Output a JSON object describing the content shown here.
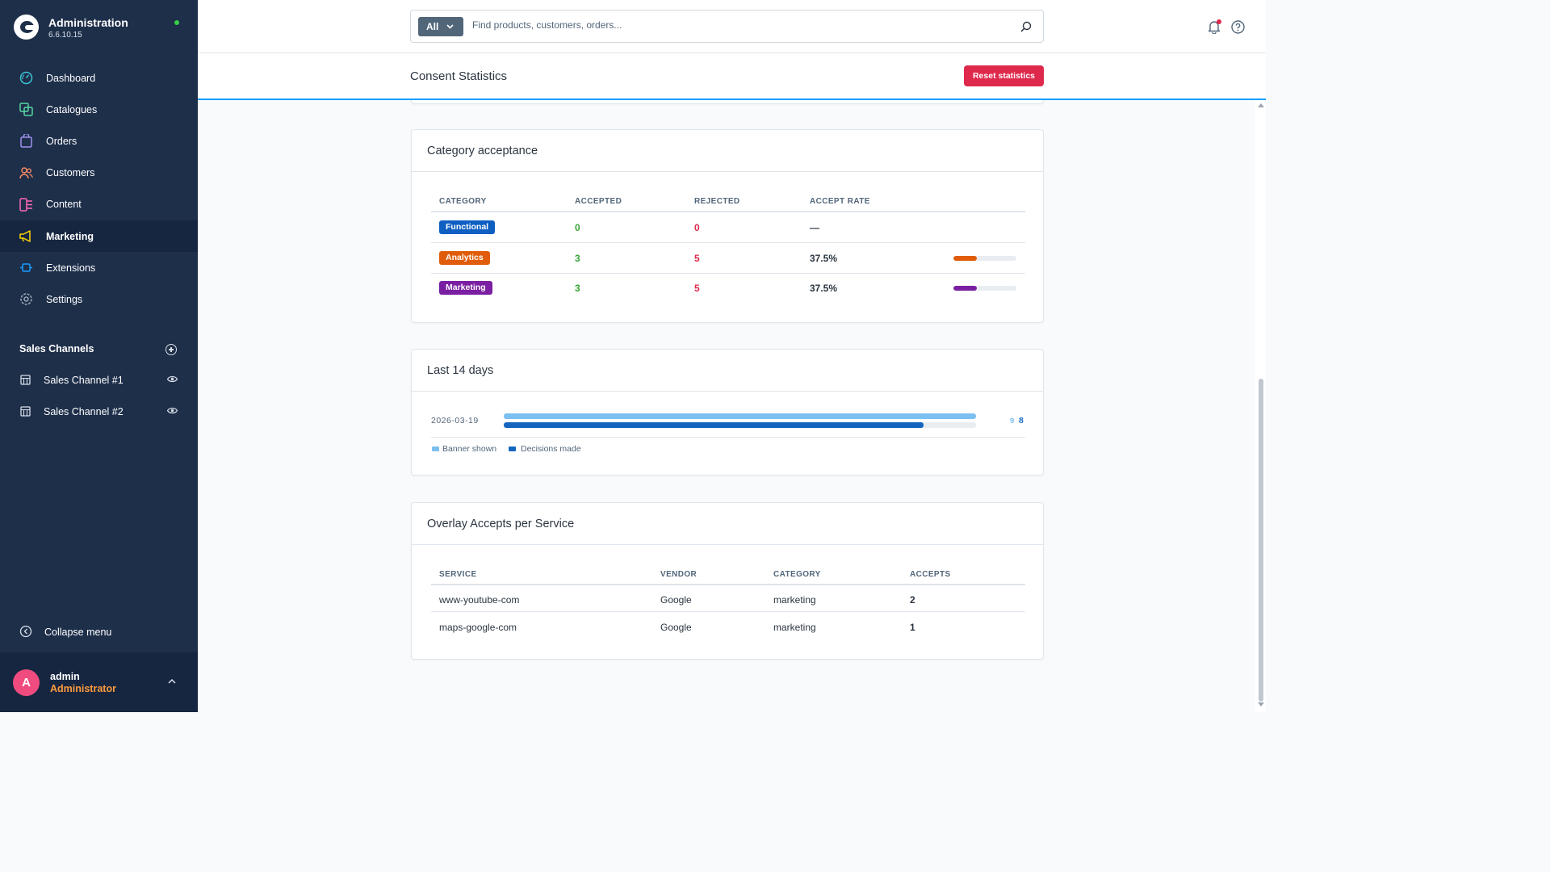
{
  "brand": {
    "title": "Administration",
    "version": "6.6.10.15"
  },
  "nav": [
    {
      "label": "Dashboard",
      "icon": "dashboard-icon",
      "color": "#3ec1d3"
    },
    {
      "label": "Catalogues",
      "icon": "catalogues-icon",
      "color": "#57d9a3"
    },
    {
      "label": "Orders",
      "icon": "orders-icon",
      "color": "#a092f0"
    },
    {
      "label": "Customers",
      "icon": "customers-icon",
      "color": "#f88962"
    },
    {
      "label": "Content",
      "icon": "content-icon",
      "color": "#ff68b4"
    },
    {
      "label": "Marketing",
      "icon": "marketing-icon",
      "color": "#ffd700"
    },
    {
      "label": "Extensions",
      "icon": "extensions-icon",
      "color": "#189eff"
    },
    {
      "label": "Settings",
      "icon": "settings-icon",
      "color": "#9aa8b5"
    }
  ],
  "sales_channels": {
    "heading": "Sales Channels",
    "items": [
      {
        "label": "Sales Channel #1"
      },
      {
        "label": "Sales Channel #2"
      }
    ]
  },
  "collapse_label": "Collapse menu",
  "user": {
    "initial": "A",
    "name": "admin",
    "role": "Administrator"
  },
  "search": {
    "type_label": "All",
    "placeholder": "Find products, customers, orders..."
  },
  "page": {
    "title": "Consent Statistics",
    "reset_label": "Reset statistics"
  },
  "category_acceptance": {
    "title": "Category acceptance",
    "headers": [
      "CATEGORY",
      "ACCEPTED",
      "REJECTED",
      "ACCEPT RATE"
    ],
    "rows": [
      {
        "category": "Functional",
        "color": "#0f5fc2",
        "accepted": "0",
        "rejected": "0",
        "rate": "—",
        "rate_value": null
      },
      {
        "category": "Analytics",
        "color": "#e05c0a",
        "accepted": "3",
        "rejected": "5",
        "rate": "37.5%",
        "rate_value": 0.375
      },
      {
        "category": "Marketing",
        "color": "#7a1fa2",
        "accepted": "3",
        "rejected": "5",
        "rate": "37.5%",
        "rate_value": 0.375
      }
    ]
  },
  "last_days": {
    "title": "Last 14 days",
    "rows": [
      {
        "date": "2026-03-19",
        "banner_shown": 9,
        "decisions_made": 8,
        "banner_label": "9",
        "decisions_label": "8"
      }
    ],
    "legend": [
      {
        "label": "Banner shown",
        "color": "#7cc0f2"
      },
      {
        "label": "Decisions made",
        "color": "#1565c0"
      }
    ]
  },
  "overlay": {
    "title": "Overlay Accepts per Service",
    "headers": [
      "SERVICE",
      "VENDOR",
      "CATEGORY",
      "ACCEPTS"
    ],
    "rows": [
      {
        "service": "www-youtube-com",
        "vendor": "Google",
        "category": "marketing",
        "accepts": "2"
      },
      {
        "service": "maps-google-com",
        "vendor": "Google",
        "category": "marketing",
        "accepts": "1"
      }
    ]
  }
}
